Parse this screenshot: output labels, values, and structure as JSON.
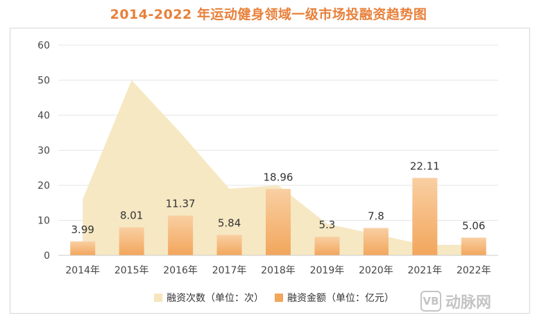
{
  "chart_data": {
    "type": "bar",
    "title": "2014-2022 年运动健身领域一级市场投融资趋势图",
    "categories": [
      "2014年",
      "2015年",
      "2016年",
      "2017年",
      "2018年",
      "2019年",
      "2020年",
      "2021年",
      "2022年"
    ],
    "ylim": [
      0,
      60
    ],
    "yticks": [
      0,
      10,
      20,
      30,
      40,
      50,
      60
    ],
    "grid": true,
    "legend_position": "bottom",
    "series": [
      {
        "name": "融资次数（单位：次）",
        "render": "area",
        "color": "#f5e6bd",
        "values": [
          16,
          50,
          35,
          19,
          20,
          9,
          6,
          3,
          3
        ]
      },
      {
        "name": "融资金额（单位：亿元）",
        "render": "bar",
        "color": "#f2a65c",
        "values": [
          3.99,
          8.01,
          11.37,
          5.84,
          18.96,
          5.3,
          7.8,
          22.11,
          5.06
        ],
        "labels": [
          "3.99",
          "8.01",
          "11.37",
          "5.84",
          "18.96",
          "5.3",
          "7.8",
          "22.11",
          "5.06"
        ]
      }
    ]
  },
  "watermark": {
    "icon_text": "VB",
    "text": "动脉网"
  }
}
